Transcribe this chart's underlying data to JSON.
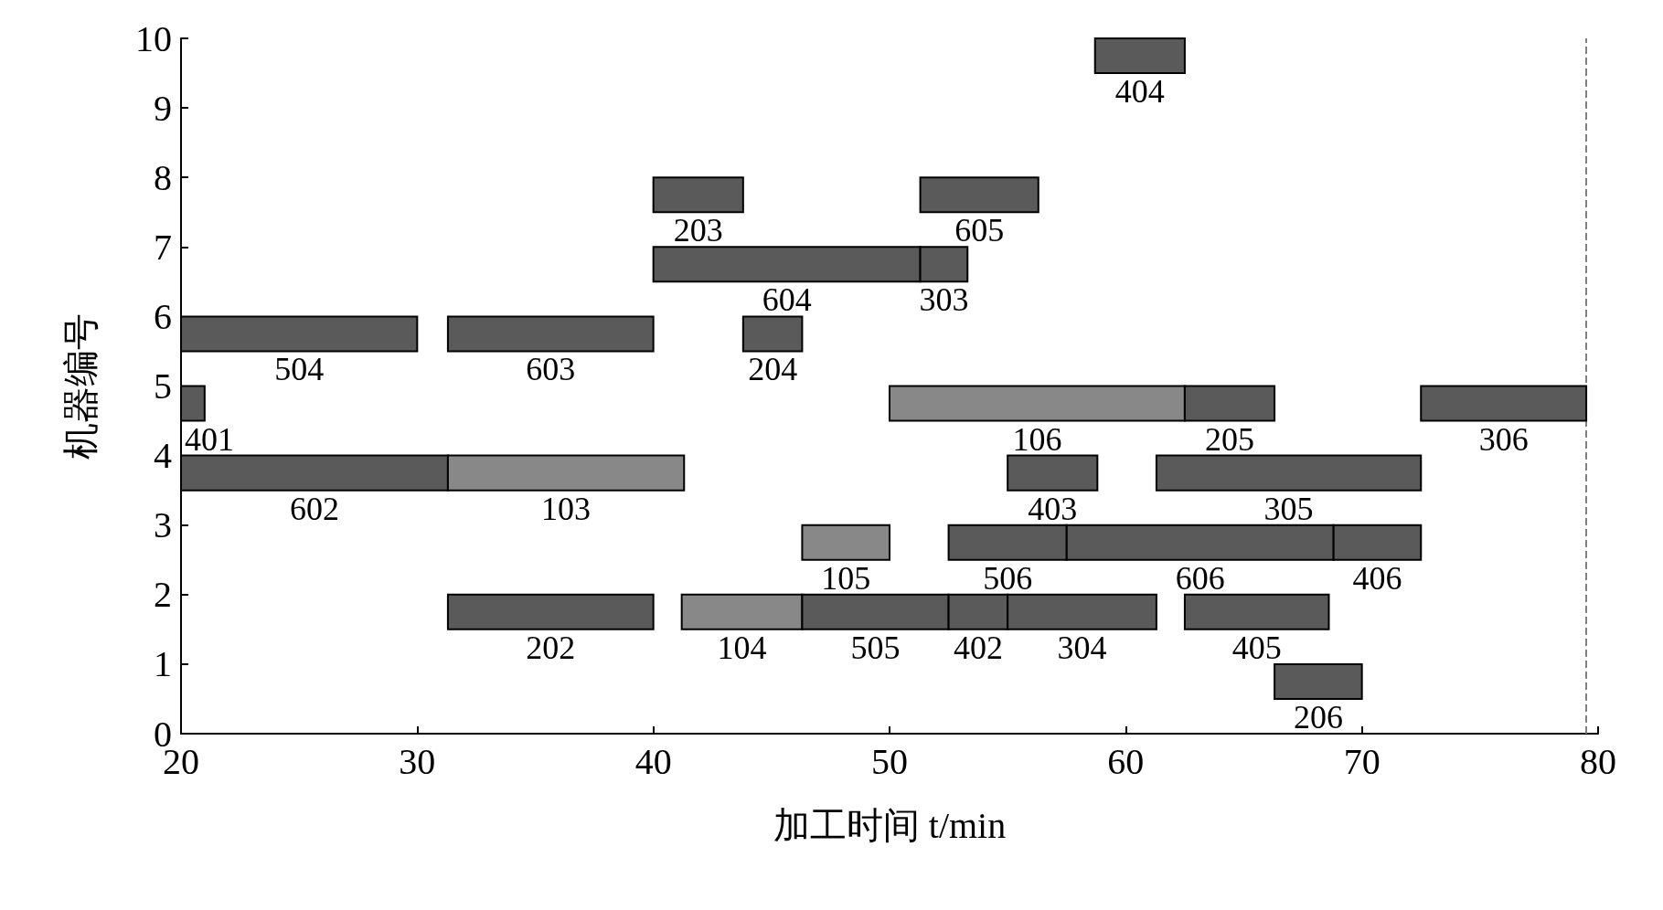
{
  "chart_data": {
    "type": "bar",
    "orientation": "horizontal",
    "xlabel": "加工时间 t/min",
    "ylabel": "机器编号",
    "xlim": [
      20,
      80
    ],
    "xticks": [
      20,
      30,
      40,
      50,
      60,
      70,
      80
    ],
    "ylim": [
      0,
      10
    ],
    "yticks": [
      0,
      1,
      2,
      3,
      4,
      5,
      6,
      7,
      8,
      9,
      10
    ],
    "grid": false,
    "legend": false,
    "ref_lines": [
      {
        "axis": "x",
        "value": 79.5,
        "line_style": "dashed",
        "color": "#808080"
      }
    ],
    "series": [
      {
        "name": "404",
        "color": "#5a5a5a",
        "x": [
          9.75
        ],
        "base": [
          58.7
        ],
        "values": [
          3.8
        ]
      },
      {
        "name": "203",
        "color": "#5a5a5a",
        "x": [
          7.75
        ],
        "base": [
          40
        ],
        "values": [
          3.8
        ]
      },
      {
        "name": "605",
        "color": "#5a5a5a",
        "x": [
          7.75
        ],
        "base": [
          51.3
        ],
        "values": [
          5
        ]
      },
      {
        "name": "604",
        "color": "#5a5a5a",
        "x": [
          6.75
        ],
        "base": [
          40
        ],
        "values": [
          11.3
        ]
      },
      {
        "name": "303",
        "color": "#5a5a5a",
        "x": [
          6.75
        ],
        "base": [
          51.3
        ],
        "values": [
          2
        ]
      },
      {
        "name": "504",
        "color": "#5a5a5a",
        "x": [
          5.75
        ],
        "base": [
          20
        ],
        "values": [
          10
        ]
      },
      {
        "name": "603",
        "color": "#5a5a5a",
        "x": [
          5.75
        ],
        "base": [
          31.3
        ],
        "values": [
          8.7
        ]
      },
      {
        "name": "204",
        "color": "#5a5a5a",
        "x": [
          5.75
        ],
        "base": [
          43.8
        ],
        "values": [
          2.5
        ]
      },
      {
        "name": "401",
        "color": "#5a5a5a",
        "x": [
          4.75
        ],
        "base": [
          20
        ],
        "values": [
          1
        ]
      },
      {
        "name": "106",
        "color": "#888888",
        "x": [
          4.75
        ],
        "base": [
          50
        ],
        "values": [
          12.5
        ]
      },
      {
        "name": "205",
        "color": "#5a5a5a",
        "x": [
          4.75
        ],
        "base": [
          62.5
        ],
        "values": [
          3.8
        ]
      },
      {
        "name": "306",
        "color": "#5a5a5a",
        "x": [
          4.75
        ],
        "base": [
          72.5
        ],
        "values": [
          7
        ]
      },
      {
        "name": "602",
        "color": "#5a5a5a",
        "x": [
          3.75
        ],
        "base": [
          20
        ],
        "values": [
          11.3
        ]
      },
      {
        "name": "103",
        "color": "#888888",
        "x": [
          3.75
        ],
        "base": [
          31.3
        ],
        "values": [
          10
        ]
      },
      {
        "name": "403",
        "color": "#5a5a5a",
        "x": [
          3.75
        ],
        "base": [
          55
        ],
        "values": [
          3.8
        ]
      },
      {
        "name": "305",
        "color": "#5a5a5a",
        "x": [
          3.75
        ],
        "base": [
          61.3
        ],
        "values": [
          11.2
        ]
      },
      {
        "name": "105",
        "color": "#888888",
        "x": [
          2.75
        ],
        "base": [
          46.3
        ],
        "values": [
          3.7
        ]
      },
      {
        "name": "506",
        "color": "#5a5a5a",
        "x": [
          2.75
        ],
        "base": [
          52.5
        ],
        "values": [
          5
        ]
      },
      {
        "name": "606",
        "color": "#5a5a5a",
        "x": [
          2.75
        ],
        "base": [
          57.5
        ],
        "values": [
          11.3
        ]
      },
      {
        "name": "406",
        "color": "#5a5a5a",
        "x": [
          2.75
        ],
        "base": [
          68.8
        ],
        "values": [
          3.7
        ]
      },
      {
        "name": "202",
        "color": "#5a5a5a",
        "x": [
          1.75
        ],
        "base": [
          31.3
        ],
        "values": [
          8.7
        ]
      },
      {
        "name": "104",
        "color": "#888888",
        "x": [
          1.75
        ],
        "base": [
          41.2
        ],
        "values": [
          5.1
        ]
      },
      {
        "name": "505",
        "color": "#5a5a5a",
        "x": [
          1.75
        ],
        "base": [
          46.3
        ],
        "values": [
          6.2
        ]
      },
      {
        "name": "402",
        "color": "#5a5a5a",
        "x": [
          1.75
        ],
        "base": [
          52.5
        ],
        "values": [
          2.5
        ]
      },
      {
        "name": "304",
        "color": "#5a5a5a",
        "x": [
          1.75
        ],
        "base": [
          55
        ],
        "values": [
          6.3
        ]
      },
      {
        "name": "405",
        "color": "#5a5a5a",
        "x": [
          1.75
        ],
        "base": [
          62.5
        ],
        "values": [
          6.1
        ]
      },
      {
        "name": "206",
        "color": "#5a5a5a",
        "x": [
          0.75
        ],
        "base": [
          66.3
        ],
        "values": [
          3.7
        ]
      }
    ]
  }
}
